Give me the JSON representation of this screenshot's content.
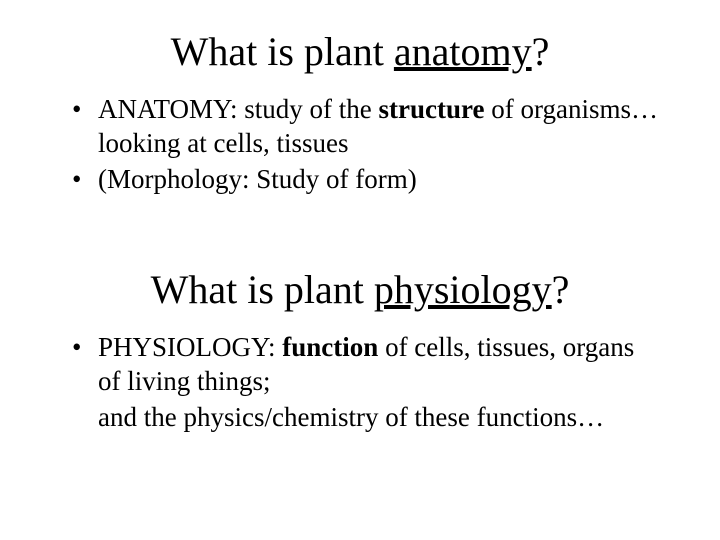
{
  "section1": {
    "title_pre": "What is plant ",
    "title_underlined": "anatomy",
    "title_post": "?",
    "bullet1_pre": "ANATOMY:  study of the ",
    "bullet1_bold": "structure",
    "bullet1_post": " of organisms… looking at cells, tissues",
    "bullet2": "(Morphology: Study of form)"
  },
  "section2": {
    "title_pre": "What is plant ",
    "title_underlined": "physiology",
    "title_post": "?",
    "bullet1_pre": "PHYSIOLOGY:  ",
    "bullet1_bold": "function",
    "bullet1_post": " of cells, tissues, organs of living things;",
    "bullet1_cont": "and the physics/chemistry of these functions…"
  },
  "colors": {
    "background": "#ffffff",
    "text": "#000000"
  },
  "fonts": {
    "family": "Times New Roman",
    "title_size_pt": 40,
    "body_size_pt": 27
  }
}
